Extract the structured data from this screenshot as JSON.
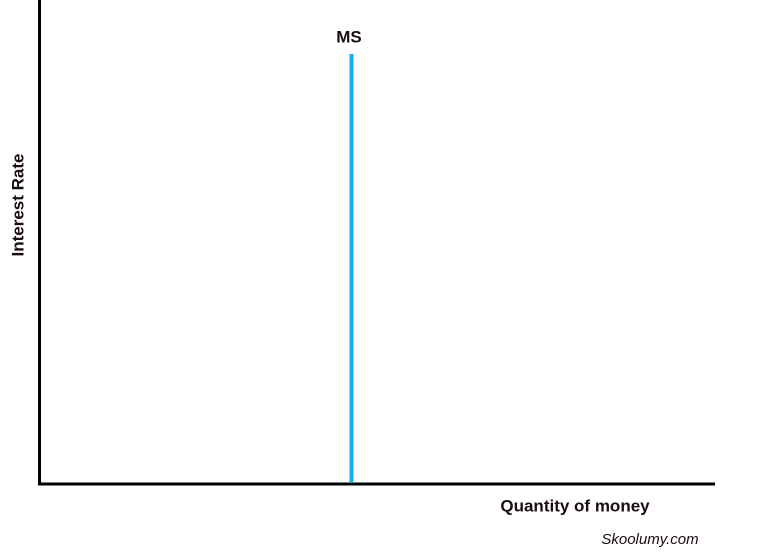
{
  "diagram": {
    "curve_label": "MS",
    "y_axis_label": "Interest Rate",
    "x_axis_label": "Quantity of money",
    "watermark": "Skoolumy.com"
  }
}
